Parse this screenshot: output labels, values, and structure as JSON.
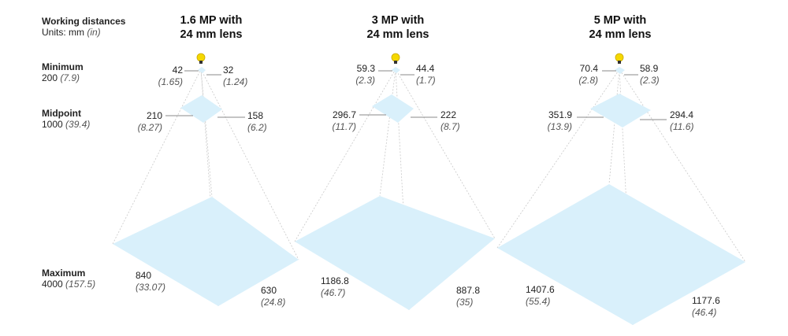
{
  "legend": {
    "title": "Working distances",
    "units_prefix": "Units: mm",
    "units_alt": "(in)"
  },
  "rows": [
    {
      "label": "Minimum",
      "value": "200",
      "alt": "(7.9)"
    },
    {
      "label": "Midpoint",
      "value": "1000",
      "alt": "(39.4)"
    },
    {
      "label": "Maximum",
      "value": "4000",
      "alt": "(157.5)"
    }
  ],
  "colors": {
    "plane": "#d9f0fb",
    "frustum_line": "#c8c8c8",
    "leader": "#888888",
    "camera": "#f5d800"
  },
  "icons": {
    "camera": "camera-lens-icon"
  },
  "columns": [
    {
      "title_line1": "1.6 MP with",
      "title_line2": "24 mm lens",
      "min": {
        "w": "42",
        "w_in": "(1.65)",
        "h": "32",
        "h_in": "(1.24)"
      },
      "mid": {
        "w": "210",
        "w_in": "(8.27)",
        "h": "158",
        "h_in": "(6.2)"
      },
      "max": {
        "w": "840",
        "w_in": "(33.07)",
        "h": "630",
        "h_in": "(24.8)"
      }
    },
    {
      "title_line1": "3 MP with",
      "title_line2": "24 mm lens",
      "min": {
        "w": "59.3",
        "w_in": "(2.3)",
        "h": "44.4",
        "h_in": "(1.7)"
      },
      "mid": {
        "w": "296.7",
        "w_in": "(11.7)",
        "h": "222",
        "h_in": "(8.7)"
      },
      "max": {
        "w": "1186.8",
        "w_in": "(46.7)",
        "h": "887.8",
        "h_in": "(35)"
      }
    },
    {
      "title_line1": "5 MP with",
      "title_line2": "24 mm lens",
      "min": {
        "w": "70.4",
        "w_in": "(2.8)",
        "h": "58.9",
        "h_in": "(2.3)"
      },
      "mid": {
        "w": "351.9",
        "w_in": "(13.9)",
        "h": "294.4",
        "h_in": "(11.6)"
      },
      "max": {
        "w": "1407.6",
        "w_in": "(55.4)",
        "h": "1177.6",
        "h_in": "(46.4)"
      }
    }
  ]
}
